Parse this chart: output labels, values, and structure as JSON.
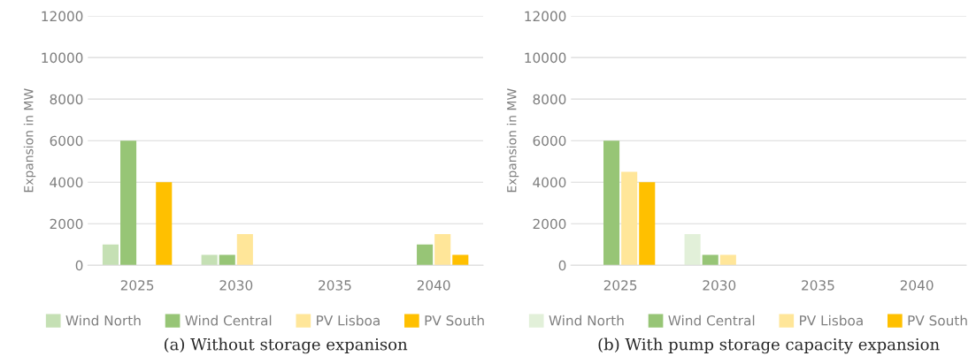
{
  "chart_data": [
    {
      "type": "bar",
      "title": "(a) Without storage expanison",
      "ylabel": "Expansion in MW",
      "categories": [
        "2025",
        "2030",
        "2035",
        "2040"
      ],
      "series": [
        {
          "name": "Wind North",
          "color": "#c5e0b4",
          "values": [
            1000,
            500,
            null,
            null
          ]
        },
        {
          "name": "Wind Central",
          "color": "#97c576",
          "values": [
            6000,
            500,
            null,
            1000
          ]
        },
        {
          "name": "PV Lisboa",
          "color": "#ffe699",
          "values": [
            null,
            1500,
            null,
            1500
          ]
        },
        {
          "name": "PV South",
          "color": "#ffc000",
          "values": [
            4000,
            null,
            null,
            500
          ]
        }
      ],
      "ylim": [
        0,
        12000
      ],
      "yticks": [
        0,
        2000,
        4000,
        6000,
        8000,
        10000,
        12000
      ],
      "grid": "y",
      "legend": "bottom"
    },
    {
      "type": "bar",
      "title": "(b) With pump storage capacity expansion",
      "ylabel": "Expansion in MW",
      "categories": [
        "2025",
        "2030",
        "2035",
        "2040"
      ],
      "series": [
        {
          "name": "Wind North",
          "color": "#e2f0d9",
          "values": [
            null,
            1500,
            null,
            null
          ]
        },
        {
          "name": "Wind Central",
          "color": "#97c576",
          "values": [
            6000,
            500,
            null,
            null
          ]
        },
        {
          "name": "PV Lisboa",
          "color": "#ffe699",
          "values": [
            4500,
            500,
            null,
            null
          ]
        },
        {
          "name": "PV South",
          "color": "#ffc000",
          "values": [
            4000,
            null,
            null,
            null
          ]
        }
      ],
      "ylim": [
        0,
        12000
      ],
      "yticks": [
        0,
        2000,
        4000,
        6000,
        8000,
        10000,
        12000
      ],
      "grid": "y",
      "legend": "bottom"
    }
  ]
}
